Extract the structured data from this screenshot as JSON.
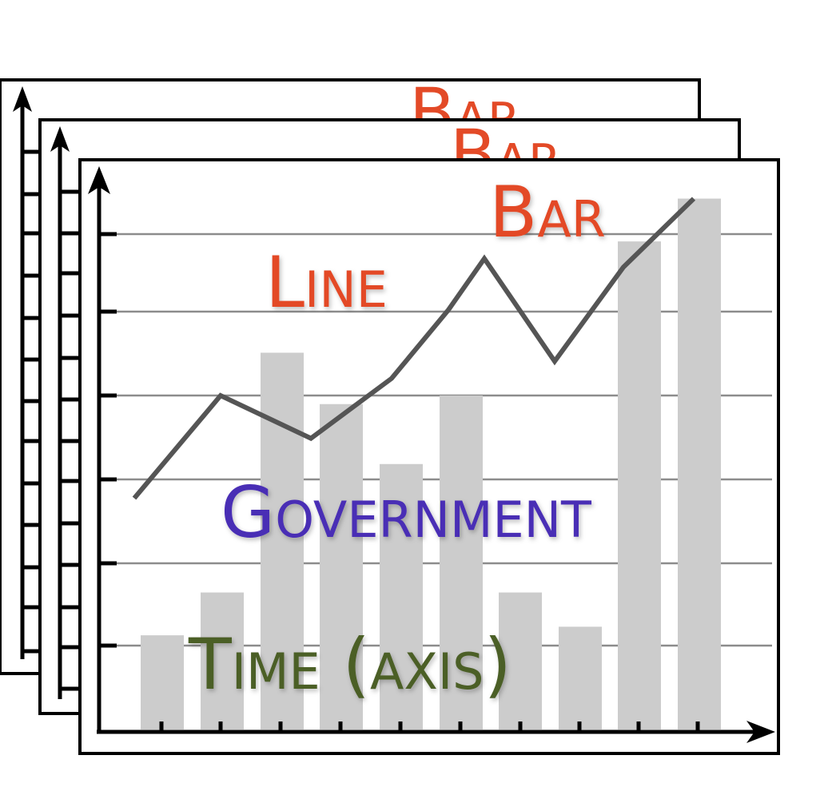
{
  "labels": {
    "bar": "Bar",
    "line": "Line",
    "government": "Government",
    "time_axis": "Time (axis)"
  },
  "colors": {
    "bar_label": "#e34a27",
    "line_label": "#e34a27",
    "government_label": "#4a2db5",
    "time_label": "#4b5e27",
    "bars": "#cccccc",
    "line": "#555555",
    "gridlines": "#8c8c8c",
    "frame": "#000000"
  },
  "chart_data": {
    "type": "bar",
    "title": "",
    "xlabel": "Time (axis)",
    "ylabel": "",
    "ylim": [
      0,
      6
    ],
    "grid": true,
    "bar_values": [
      1.1,
      1.6,
      4.4,
      3.8,
      3.1,
      3.9,
      1.6,
      1.2,
      5.7,
      6.2
    ],
    "line_values": [
      2.7,
      3.9,
      3.4,
      4.1,
      4.9,
      5.5,
      4.3,
      5.4,
      6.2
    ]
  }
}
